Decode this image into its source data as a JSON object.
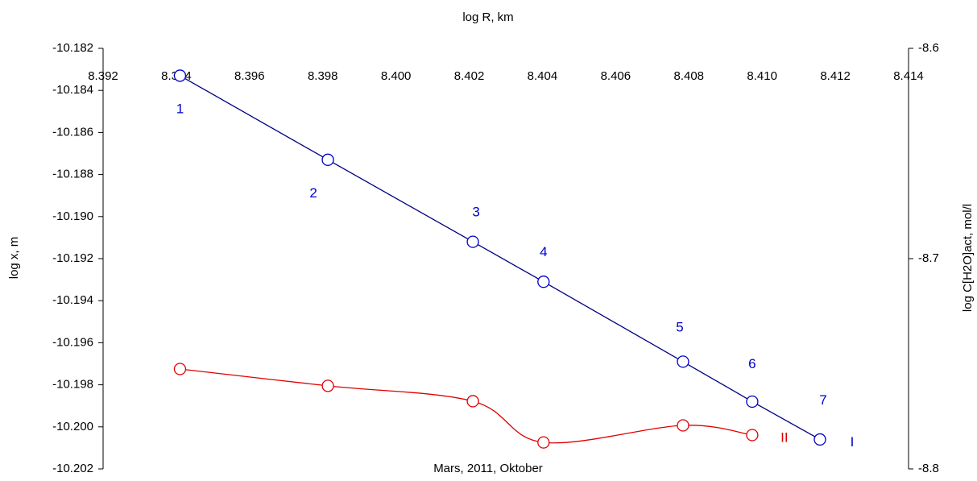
{
  "chart_data": {
    "type": "line",
    "title": "log R, km",
    "subtitle": "Mars, 2011, Oktober",
    "y_label": "log x, m",
    "y2_label": "log C[H2O]act, mol/l",
    "xlim": [
      8.392,
      8.414
    ],
    "xticks": [
      {
        "value": 8.392,
        "label": "8.392"
      },
      {
        "value": 8.394,
        "label": "8.394"
      },
      {
        "value": 8.396,
        "label": "8.396"
      },
      {
        "value": 8.398,
        "label": "8.398"
      },
      {
        "value": 8.4,
        "label": "8.400"
      },
      {
        "value": 8.402,
        "label": "8.402"
      },
      {
        "value": 8.404,
        "label": "8.404"
      },
      {
        "value": 8.406,
        "label": "8.406"
      },
      {
        "value": 8.408,
        "label": "8.408"
      },
      {
        "value": 8.41,
        "label": "8.410"
      },
      {
        "value": 8.412,
        "label": "8.412"
      },
      {
        "value": 8.414,
        "label": "8.414"
      }
    ],
    "ylim": [
      -10.202,
      -10.182
    ],
    "yticks": [
      {
        "value": -10.182,
        "label": "-10.182"
      },
      {
        "value": -10.184,
        "label": "-10.184"
      },
      {
        "value": -10.186,
        "label": "-10.186"
      },
      {
        "value": -10.188,
        "label": "-10.188"
      },
      {
        "value": -10.19,
        "label": "-10.190"
      },
      {
        "value": -10.192,
        "label": "-10.192"
      },
      {
        "value": -10.194,
        "label": "-10.194"
      },
      {
        "value": -10.196,
        "label": "-10.196"
      },
      {
        "value": -10.198,
        "label": "-10.198"
      },
      {
        "value": -10.2,
        "label": "-10.200"
      },
      {
        "value": -10.202,
        "label": "-10.202"
      }
    ],
    "y2lim": [
      -8.8,
      -8.6
    ],
    "y2ticks": [
      -8.6,
      -8.7,
      -8.8
    ],
    "series": [
      {
        "name": "I",
        "color": "#0000cc",
        "line_color": "#000080",
        "smooth": false,
        "x": [
          8.3941,
          8.39814,
          8.4021,
          8.40403,
          8.40784,
          8.40973,
          8.41158
        ],
        "values": [
          -10.1833,
          -10.1873,
          -10.1912,
          -10.1931,
          -10.1969,
          -10.1988,
          -10.2006
        ],
        "point_labels": [
          "1",
          "2",
          "3",
          "4",
          "5",
          "6",
          "7"
        ]
      },
      {
        "name": "II",
        "color": "#e00000",
        "line_color": "#e00000",
        "smooth": true,
        "axis": "y2",
        "x": [
          8.3941,
          8.39814,
          8.4021,
          8.40403,
          8.40784,
          8.40973
        ],
        "values": [
          -8.7525,
          -8.7605,
          -8.7678,
          -8.7874,
          -8.7793,
          -8.7839
        ]
      }
    ]
  }
}
